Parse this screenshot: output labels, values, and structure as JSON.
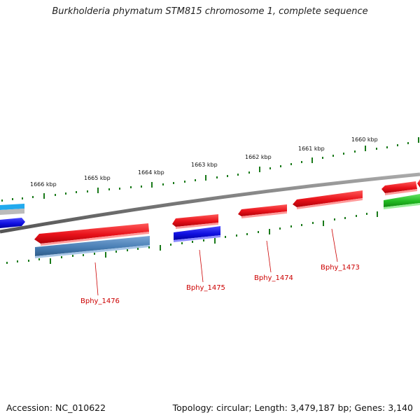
{
  "title": "Burkholderia phymatum STM815 chromosome 1, complete sequence",
  "footer": {
    "accession": "Accession: NC_010622",
    "summary": "Topology: circular; Length: 3,479,187 bp; Genes: 3,140"
  },
  "ticks": [
    {
      "label": "1666 kbp"
    },
    {
      "label": "1665 kbp"
    },
    {
      "label": "1664 kbp"
    },
    {
      "label": "1663 kbp"
    },
    {
      "label": "1662 kbp"
    },
    {
      "label": "1661 kbp"
    },
    {
      "label": "1660 kbp"
    }
  ],
  "genes": [
    {
      "label": "Bphy_1476",
      "color": "#e8121a"
    },
    {
      "label": "Bphy_1475",
      "color": "#e8121a"
    },
    {
      "label": "Bphy_1474",
      "color": "#e8121a"
    },
    {
      "label": "Bphy_1473",
      "color": "#e8121a"
    }
  ],
  "colors": {
    "forward_gene": "#e8121a",
    "reverse_gene": "#1010e0",
    "steelblue_gene": "#4a7fb5",
    "green_gene": "#22bb22",
    "cyan_gene": "#22aaee",
    "backbone": "#777777",
    "tick": "#1a7a1a",
    "label": "#cc0000"
  }
}
